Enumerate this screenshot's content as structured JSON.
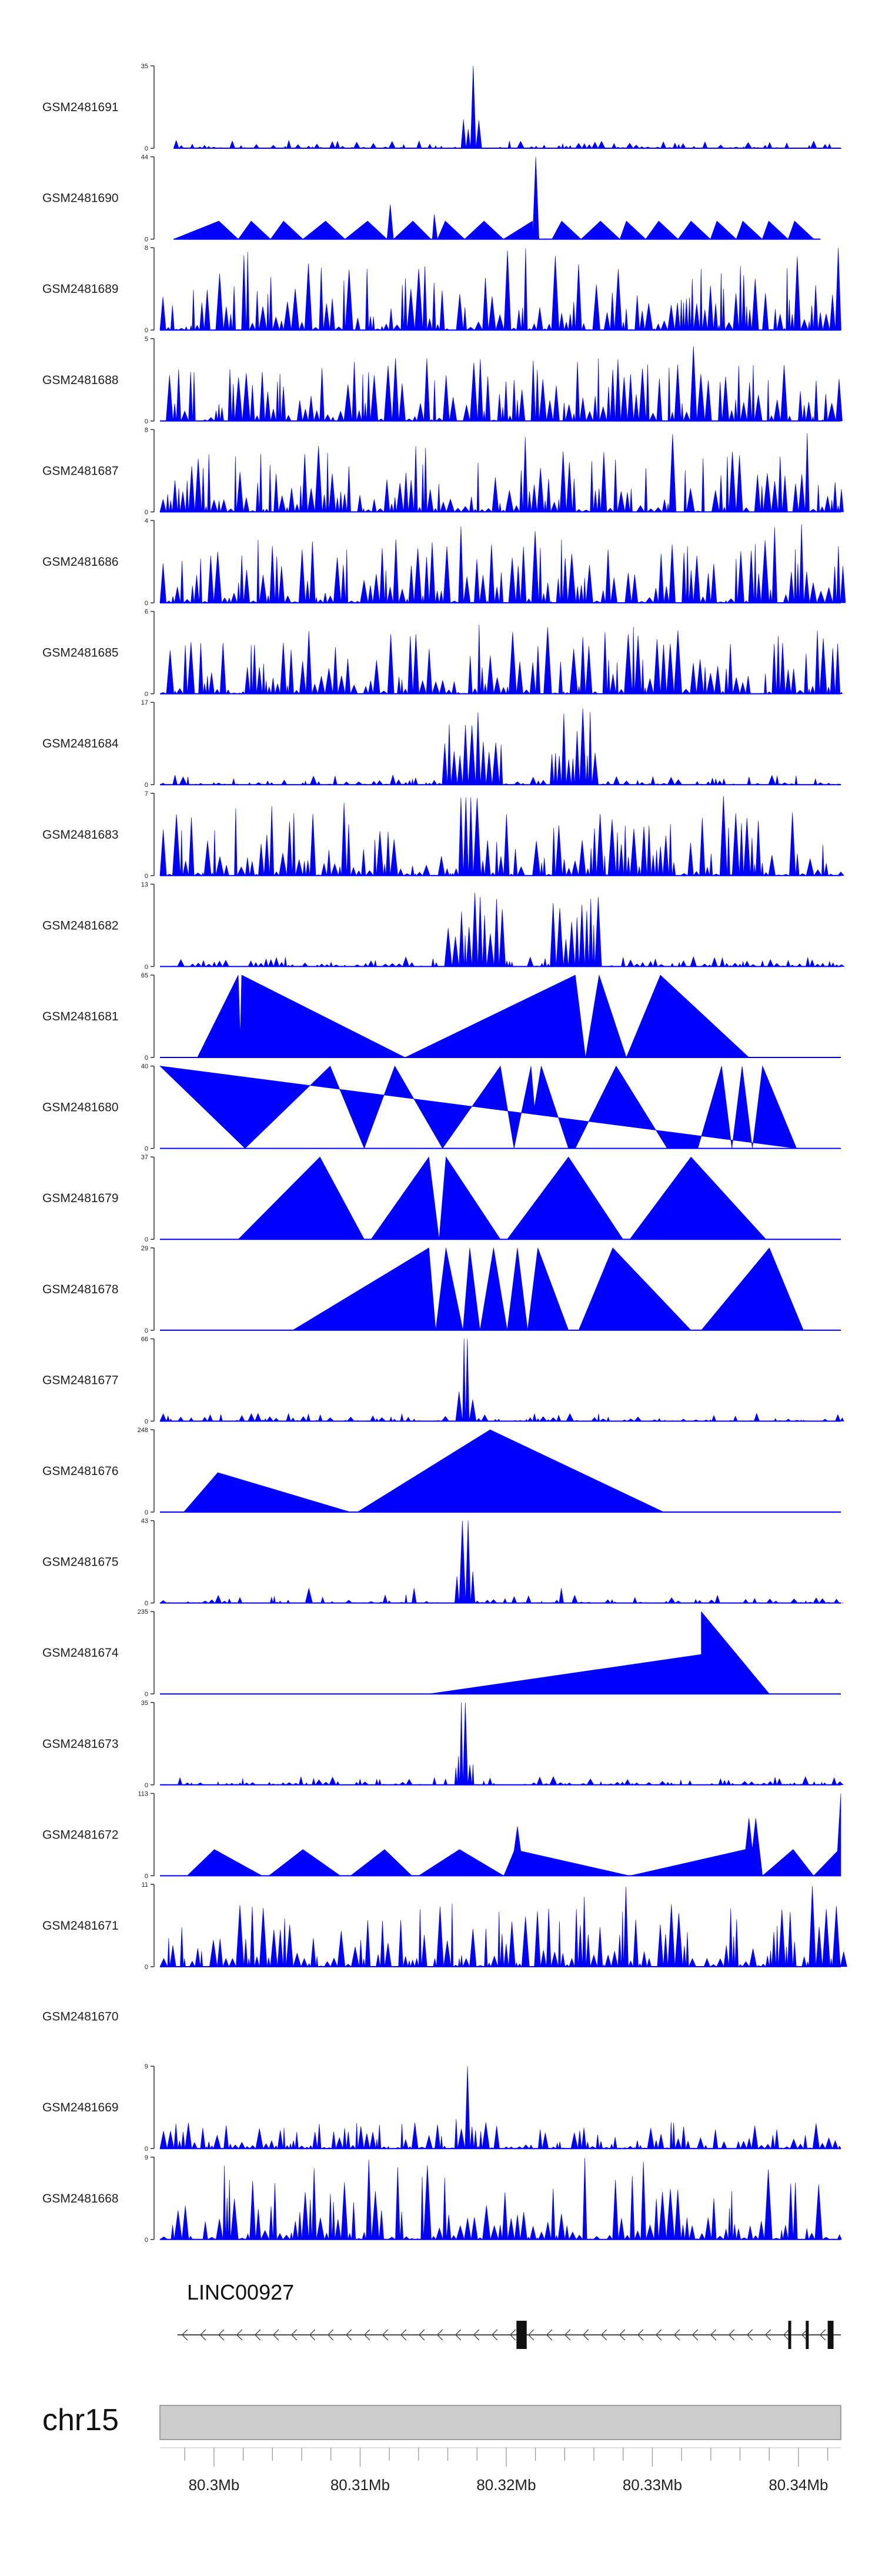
{
  "chart_data": {
    "type": "area",
    "title": "",
    "tracks": [
      {
        "label": "GSM2481691",
        "ymax": 35,
        "pattern": "peak",
        "start": 0.02,
        "end": 1.0
      },
      {
        "label": "GSM2481690",
        "ymax": 44,
        "pattern": "peak_sparse",
        "start": 0.02,
        "end": 0.97
      },
      {
        "label": "GSM2481689",
        "ymax": 8,
        "pattern": "dense",
        "start": 0.0,
        "end": 1.0
      },
      {
        "label": "GSM2481688",
        "ymax": 5,
        "pattern": "dense",
        "start": 0.0,
        "end": 1.0
      },
      {
        "label": "GSM2481687",
        "ymax": 8,
        "pattern": "dense",
        "start": 0.0,
        "end": 1.0
      },
      {
        "label": "GSM2481686",
        "ymax": 4,
        "pattern": "dense",
        "start": 0.0,
        "end": 1.0
      },
      {
        "label": "GSM2481685",
        "ymax": 6,
        "pattern": "dense",
        "start": 0.0,
        "end": 1.0
      },
      {
        "label": "GSM2481684",
        "ymax": 17,
        "pattern": "double",
        "start": 0.0,
        "end": 1.0
      },
      {
        "label": "GSM2481683",
        "ymax": 7,
        "pattern": "dense_peak",
        "start": 0.0,
        "end": 1.0
      },
      {
        "label": "GSM2481682",
        "ymax": 13,
        "pattern": "double",
        "start": 0.0,
        "end": 1.0
      },
      {
        "label": "GSM2481681",
        "ymax": 65,
        "pattern": "triangles",
        "start": 0.0,
        "end": 1.0,
        "vertices": [
          [
            0.055,
            0
          ],
          [
            0.115,
            1
          ],
          [
            0.118,
            0.25
          ],
          [
            0.12,
            1
          ],
          [
            0.36,
            0
          ],
          [
            0.61,
            1
          ],
          [
            0.625,
            0
          ],
          [
            0.645,
            1
          ],
          [
            0.685,
            0
          ],
          [
            0.735,
            1
          ],
          [
            0.865,
            0
          ]
        ]
      },
      {
        "label": "GSM2481680",
        "ymax": 40,
        "pattern": "triangles",
        "start": 0.0,
        "end": 1.0,
        "vertices": [
          [
            0.0,
            1
          ],
          [
            0.125,
            0
          ],
          [
            0.25,
            1
          ],
          [
            0.3,
            0
          ],
          [
            0.345,
            1
          ],
          [
            0.415,
            0
          ],
          [
            0.5,
            1
          ],
          [
            0.52,
            0
          ],
          [
            0.545,
            1
          ],
          [
            0.55,
            0.5
          ],
          [
            0.56,
            1
          ],
          [
            0.6,
            0
          ],
          [
            0.61,
            0
          ],
          [
            0.67,
            1
          ],
          [
            0.745,
            0
          ],
          [
            0.79,
            0
          ],
          [
            0.825,
            1
          ],
          [
            0.84,
            0
          ],
          [
            0.855,
            1
          ],
          [
            0.87,
            0
          ],
          [
            0.885,
            1
          ],
          [
            0.935,
            0
          ]
        ]
      },
      {
        "label": "GSM2481679",
        "ymax": 37,
        "pattern": "triangles",
        "start": 0.0,
        "end": 1.0,
        "vertices": [
          [
            0.115,
            0
          ],
          [
            0.235,
            1
          ],
          [
            0.3,
            0
          ],
          [
            0.31,
            0
          ],
          [
            0.395,
            1
          ],
          [
            0.41,
            0
          ],
          [
            0.42,
            1
          ],
          [
            0.5,
            0
          ],
          [
            0.51,
            0
          ],
          [
            0.6,
            1
          ],
          [
            0.68,
            0
          ],
          [
            0.69,
            0
          ],
          [
            0.78,
            1
          ],
          [
            0.89,
            0
          ]
        ]
      },
      {
        "label": "GSM2481678",
        "ymax": 29,
        "pattern": "triangles",
        "start": 0.0,
        "end": 1.0,
        "vertices": [
          [
            0.195,
            0
          ],
          [
            0.395,
            1
          ],
          [
            0.405,
            0
          ],
          [
            0.42,
            1
          ],
          [
            0.445,
            0
          ],
          [
            0.455,
            1
          ],
          [
            0.47,
            0
          ],
          [
            0.49,
            1
          ],
          [
            0.51,
            0
          ],
          [
            0.525,
            1
          ],
          [
            0.54,
            0
          ],
          [
            0.555,
            1
          ],
          [
            0.6,
            0
          ],
          [
            0.615,
            0
          ],
          [
            0.665,
            1
          ],
          [
            0.78,
            0
          ],
          [
            0.795,
            0
          ],
          [
            0.895,
            1
          ],
          [
            0.945,
            0
          ]
        ]
      },
      {
        "label": "GSM2481677",
        "ymax": 66,
        "pattern": "peak",
        "start": 0.0,
        "end": 1.0
      },
      {
        "label": "GSM2481676",
        "ymax": 248,
        "pattern": "triangles",
        "start": 0.0,
        "end": 1.0,
        "vertices": [
          [
            0.035,
            0
          ],
          [
            0.085,
            0.48
          ],
          [
            0.28,
            0
          ],
          [
            0.29,
            0
          ],
          [
            0.485,
            1
          ],
          [
            0.74,
            0
          ]
        ]
      },
      {
        "label": "GSM2481675",
        "ymax": 43,
        "pattern": "peak_tail",
        "start": 0.0,
        "end": 1.0
      },
      {
        "label": "GSM2481674",
        "ymax": 235,
        "pattern": "triangles",
        "start": 0.0,
        "end": 1.0,
        "vertices": [
          [
            0.395,
            0
          ],
          [
            0.795,
            0.48
          ],
          [
            0.795,
            1
          ],
          [
            0.895,
            0
          ]
        ]
      },
      {
        "label": "GSM2481673",
        "ymax": 35,
        "pattern": "peak",
        "start": 0.0,
        "end": 1.0
      },
      {
        "label": "GSM2481672",
        "ymax": 113,
        "pattern": "triangles",
        "start": 0.0,
        "end": 1.0,
        "vertices": [
          [
            0.04,
            0
          ],
          [
            0.08,
            0.32
          ],
          [
            0.15,
            0
          ],
          [
            0.16,
            0
          ],
          [
            0.21,
            0.32
          ],
          [
            0.265,
            0
          ],
          [
            0.28,
            0
          ],
          [
            0.33,
            0.32
          ],
          [
            0.37,
            0
          ],
          [
            0.38,
            0
          ],
          [
            0.44,
            0.32
          ],
          [
            0.505,
            0
          ],
          [
            0.52,
            0.3
          ],
          [
            0.525,
            0.6
          ],
          [
            0.53,
            0.3
          ],
          [
            0.69,
            0
          ],
          [
            0.86,
            0.32
          ],
          [
            0.865,
            0.7
          ],
          [
            0.87,
            0.32
          ],
          [
            0.875,
            0.7
          ],
          [
            0.885,
            0
          ],
          [
            0.93,
            0.32
          ],
          [
            0.96,
            0
          ],
          [
            0.995,
            0.3
          ],
          [
            1.0,
            1
          ]
        ]
      },
      {
        "label": "GSM2481671",
        "ymax": 11,
        "pattern": "dense_triangles",
        "start": 0.0,
        "end": 1.0
      },
      {
        "label": "GSM2481670",
        "ymax": null,
        "pattern": "empty",
        "start": 0.0,
        "end": 1.0
      },
      {
        "label": "GSM2481669",
        "ymax": 9,
        "pattern": "peak_dense",
        "start": 0.0,
        "end": 1.0
      },
      {
        "label": "GSM2481668",
        "ymax": 9,
        "pattern": "dense",
        "start": 0.0,
        "end": 1.0
      }
    ],
    "gene": {
      "name": "LINC00927",
      "strand": "-",
      "start_mb": 80.2975,
      "end_mb": 80.3443,
      "exons_mb": [
        [
          80.3207,
          80.3214
        ],
        [
          80.3393,
          80.3395
        ],
        [
          80.3405,
          80.3407
        ],
        [
          80.342,
          80.3424
        ]
      ]
    },
    "chromosome": "chr15",
    "x_range_mb": [
      80.2963,
      80.3429
    ],
    "x_ticks_mb": [
      80.3,
      80.31,
      80.32,
      80.33,
      80.34
    ],
    "x_tick_labels": [
      "80.3Mb",
      "80.31Mb",
      "80.32Mb",
      "80.33Mb",
      "80.34Mb"
    ],
    "ymin_label": "0",
    "colors": {
      "signal": "#0000ff",
      "axis": "#333333",
      "ideogram_fill": "#cccccc",
      "ideogram_stroke": "#888888",
      "gene": "#111111"
    }
  }
}
